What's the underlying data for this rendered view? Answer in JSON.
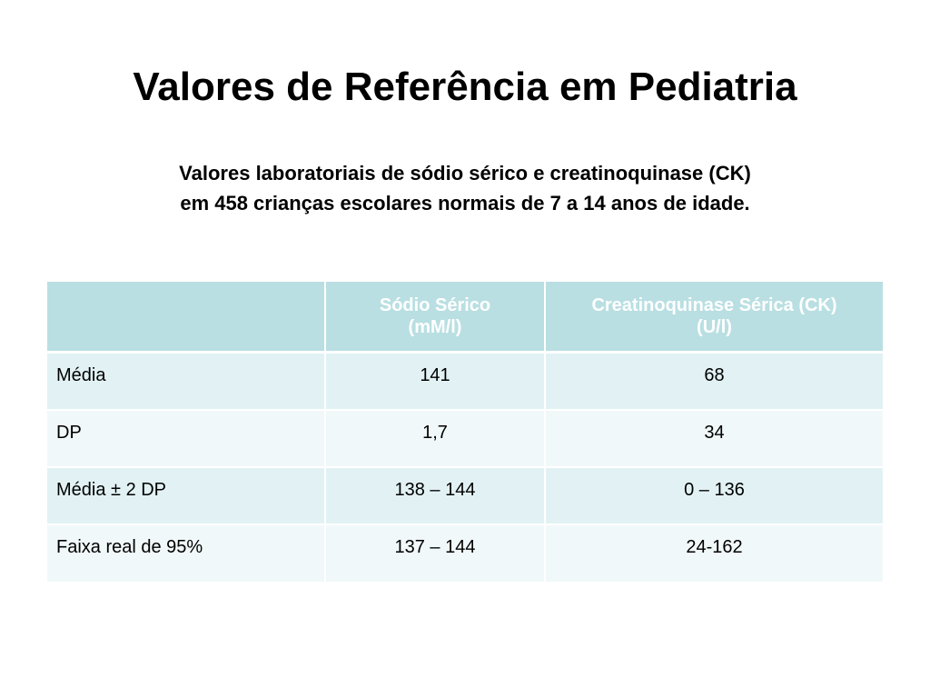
{
  "slide": {
    "title": "Valores de Referência em Pediatria",
    "subtitle_line1": "Valores laboratoriais de sódio sérico e creatinoquinase (CK)",
    "subtitle_line2": "em 458 crianças escolares normais de 7 a 14 anos de idade."
  },
  "table": {
    "headers": [
      {
        "line1": "",
        "line2": ""
      },
      {
        "line1": "Sódio Sérico",
        "line2": "(mM/l)"
      },
      {
        "line1": "Creatinoquinase Sérica (CK)",
        "line2": "(U/l)"
      }
    ],
    "rows": [
      {
        "label": "Média",
        "sodio": "141",
        "ck": "68"
      },
      {
        "label": "DP",
        "sodio": "1,7",
        "ck": "34"
      },
      {
        "label": "Média ± 2 DP",
        "sodio": "138 – 144",
        "ck": "0 – 136"
      },
      {
        "label": "Faixa real de 95%",
        "sodio": "137 – 144",
        "ck": "24-162"
      }
    ],
    "colors": {
      "header_bg": "#b9dfe2",
      "header_text": "#ffffff",
      "row_odd_bg": "#e2f2f4",
      "row_even_bg": "#f1f8f9"
    }
  }
}
